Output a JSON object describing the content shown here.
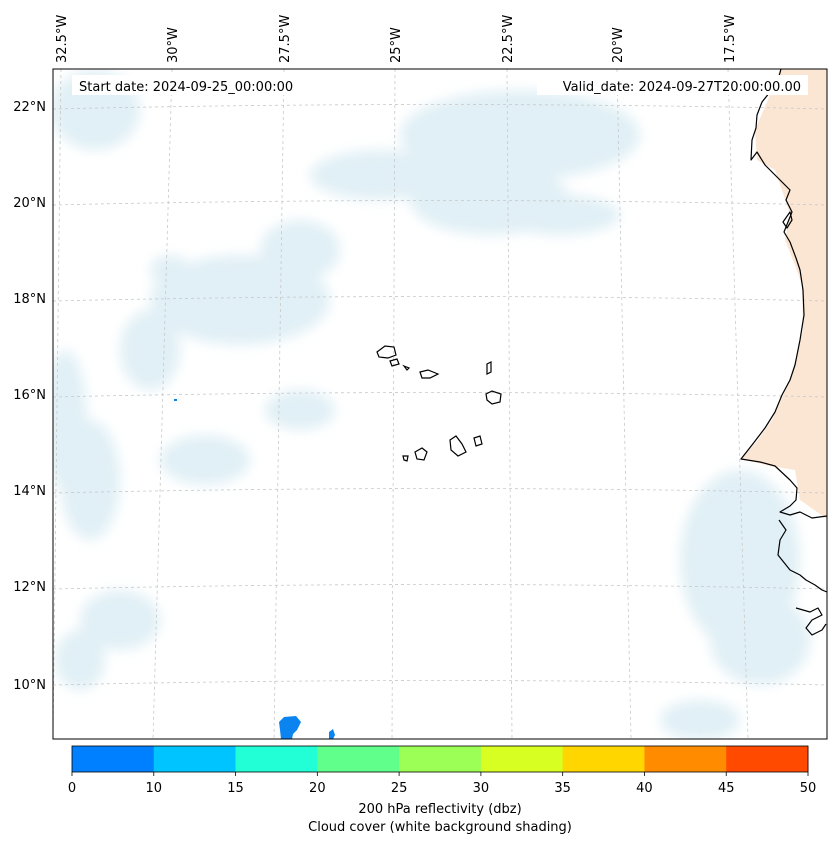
{
  "header": {
    "start_date": "Start date: 2024-09-25_00:00:00",
    "valid_date": "Valid_date: 2024-09-27T20:00:00.00"
  },
  "map": {
    "lon_labels": [
      "32.5°W",
      "30°W",
      "27.5°W",
      "25°W",
      "22.5°W",
      "20°W",
      "17.5°W"
    ],
    "lat_labels": [
      "22°N",
      "20°N",
      "18°N",
      "16°N",
      "14°N",
      "12°N",
      "10°N"
    ],
    "gridlines": "on",
    "cloud_color": "#d7ebf3",
    "land_color": "#fbe3cf",
    "coast_color": "#000000",
    "echo_color": "#0b84f0"
  },
  "colorbar": {
    "ticks": [
      "0",
      "10",
      "15",
      "20",
      "25",
      "30",
      "35",
      "40",
      "45",
      "50"
    ],
    "colors": [
      "#0080ff",
      "#00c4ff",
      "#22ffd6",
      "#60ff8c",
      "#9cff55",
      "#d8ff22",
      "#ffd600",
      "#ff8c00",
      "#ff4a00"
    ],
    "label": "200 hPa reflectivity (dbz)",
    "sublabel": "Cloud cover (white background shading)"
  }
}
